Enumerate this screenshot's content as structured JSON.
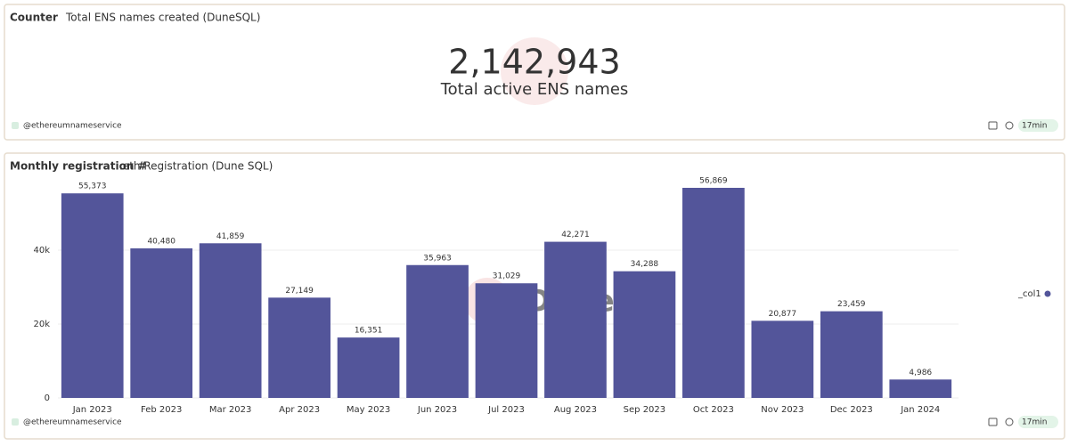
{
  "counter": {
    "kind": "Counter",
    "title": "Total ENS names created (DuneSQL)",
    "value": {
      "value": 2142943,
      "label": "2,142,943"
    },
    "subtitle": "Total active ENS names",
    "author": "@ethereumnameservice",
    "refresh": "17min"
  },
  "chart_data": {
    "type": "bar",
    "kind": "Monthly registration #",
    "title": ".eth Registration (Dune SQL)",
    "categories": [
      "Jan 2023",
      "Feb 2023",
      "Mar 2023",
      "Apr 2023",
      "May 2023",
      "Jun 2023",
      "Jul 2023",
      "Aug 2023",
      "Sep 2023",
      "Oct 2023",
      "Nov 2023",
      "Dec 2023",
      "Jan 2024"
    ],
    "values": [
      55373,
      40480,
      41859,
      27149,
      16351,
      35963,
      31029,
      42271,
      34288,
      56869,
      20877,
      23459,
      4986
    ],
    "value_labels": [
      "55,373",
      "40,480",
      "41,859",
      "27,149",
      "16,351",
      "35,963",
      "31,029",
      "42,271",
      "34,288",
      "56,869",
      "20,877",
      "23,459",
      "4,986"
    ],
    "color": "#53559a",
    "ylim": [
      0,
      60000
    ],
    "yticks": [
      0,
      {
        "value": 20000,
        "label": "20k"
      },
      {
        "value": 40000,
        "label": "40k"
      }
    ],
    "grid": true,
    "legend": "_col1",
    "legend_position": "right",
    "watermark": "Dune",
    "author": "@ethereumnameservice",
    "refresh": "17min"
  }
}
